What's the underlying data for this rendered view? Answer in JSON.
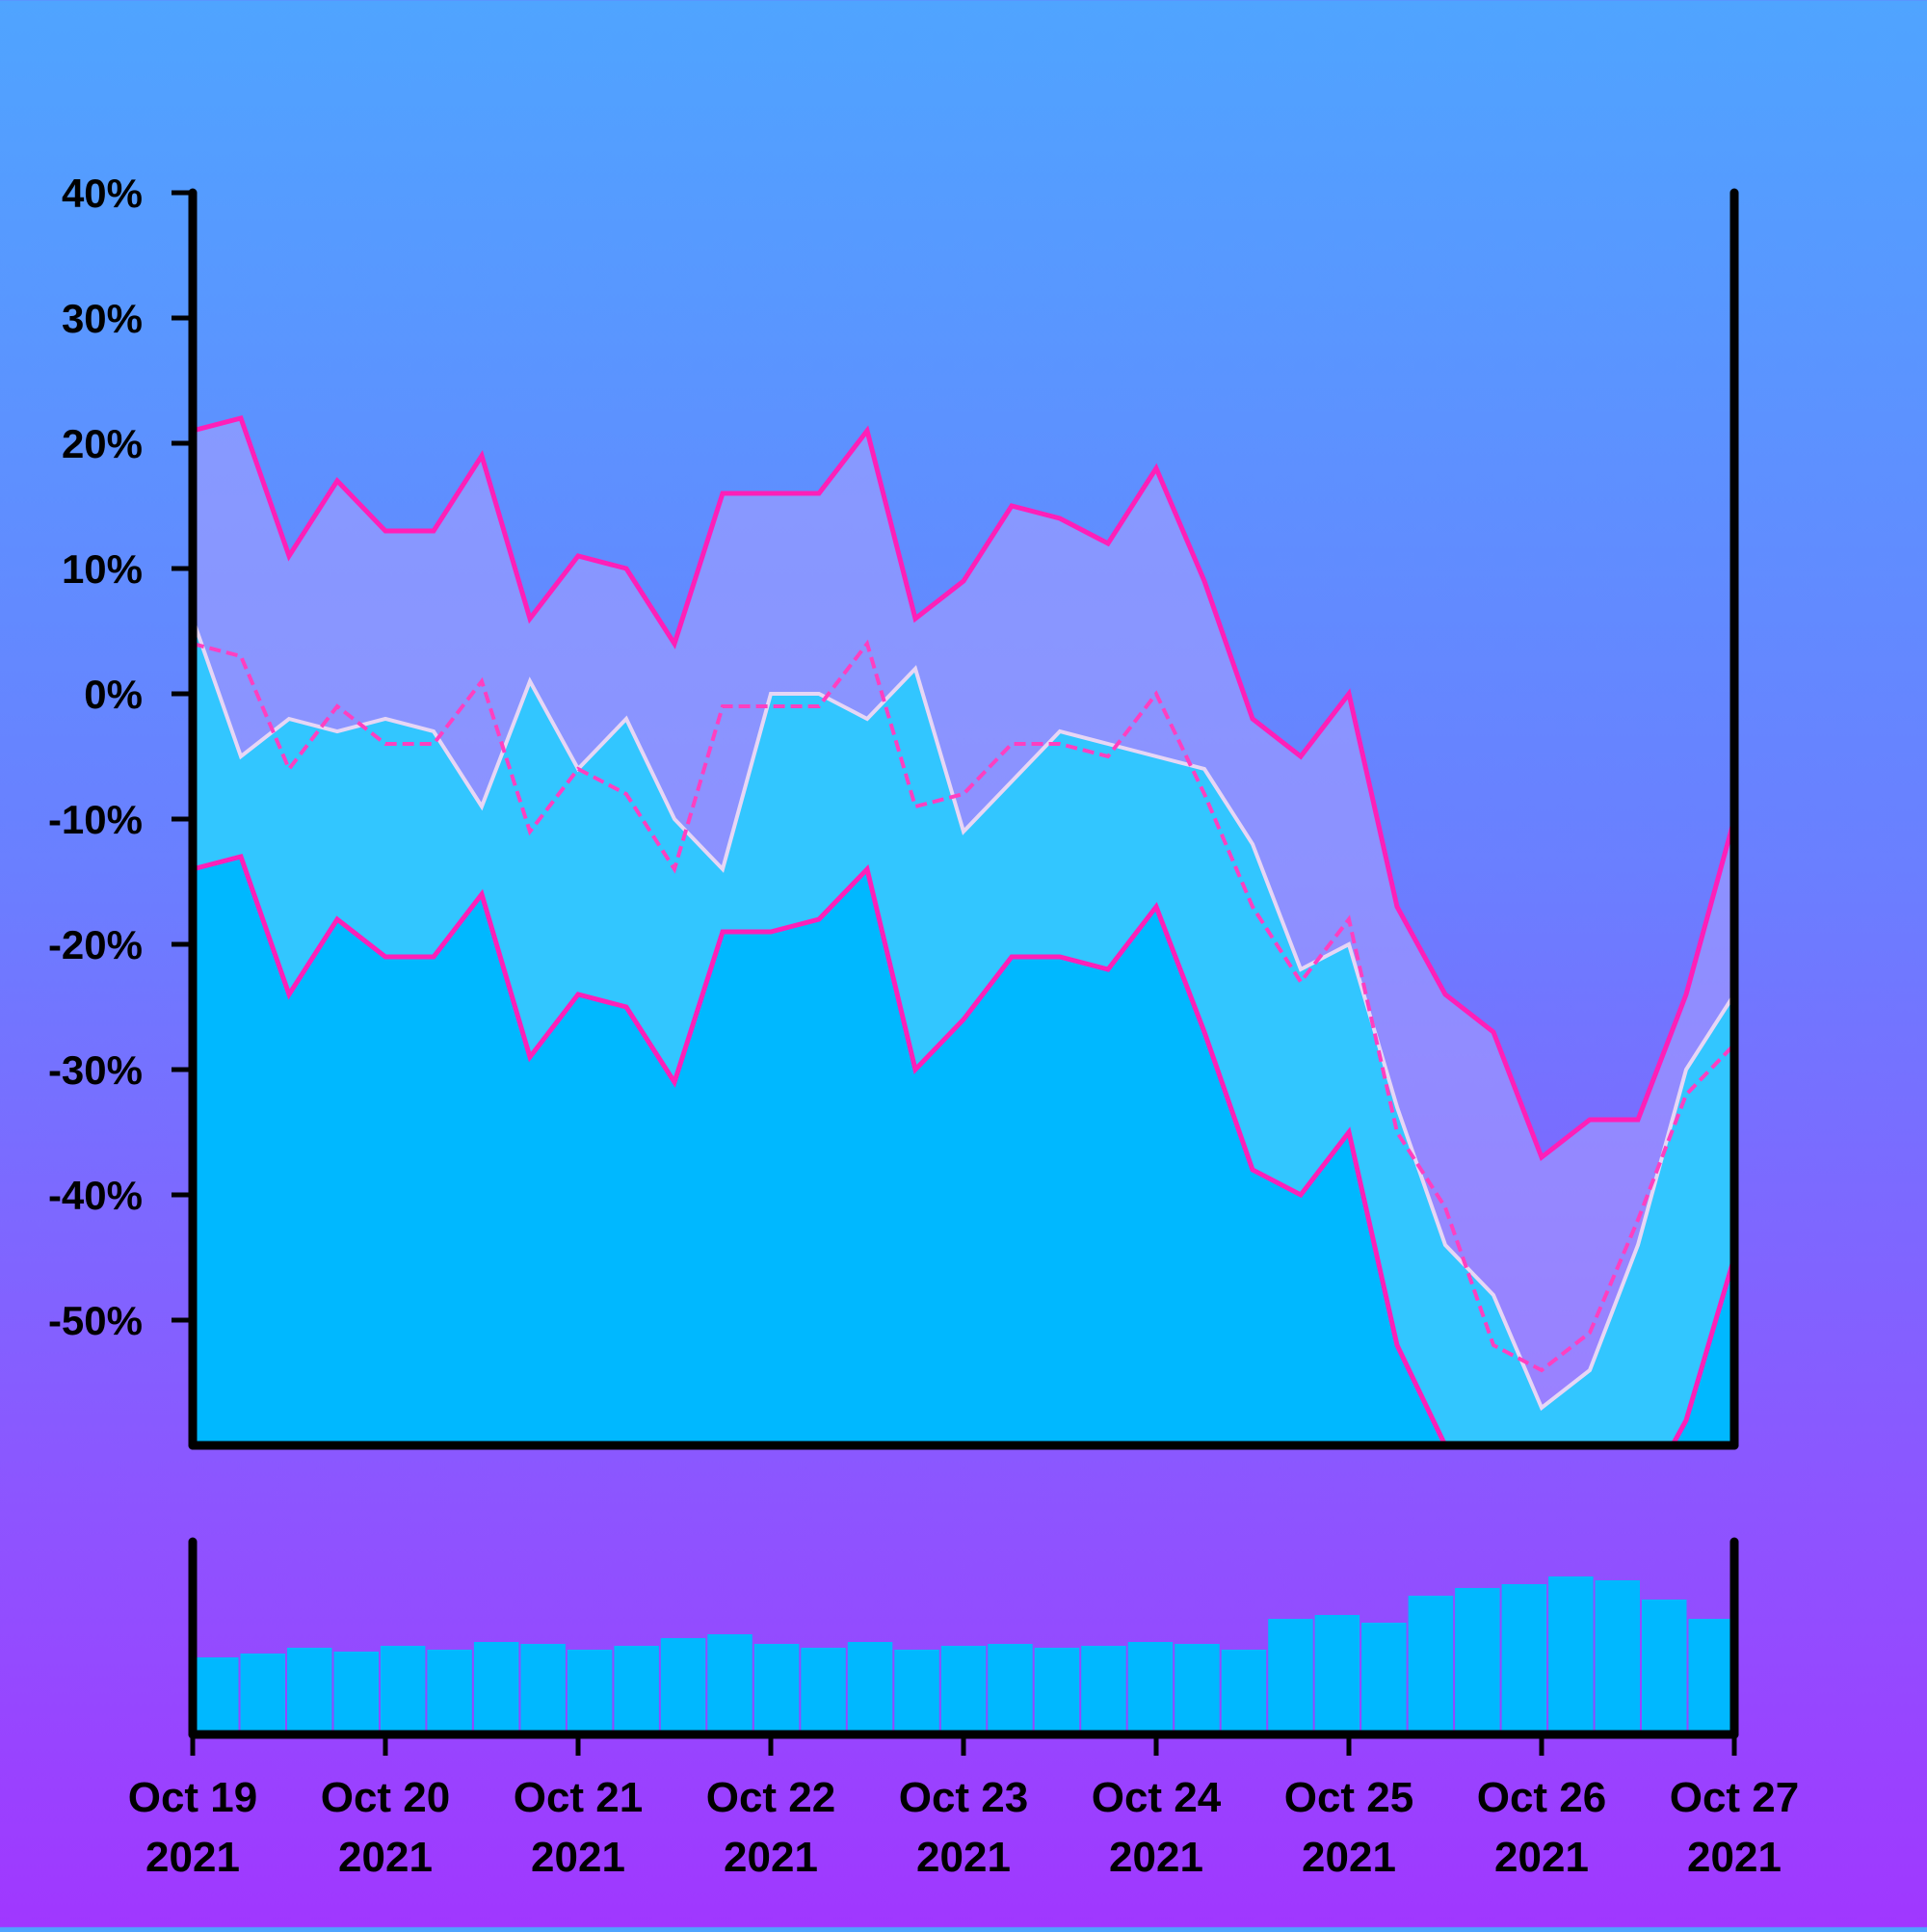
{
  "chart_data": {
    "type": "line",
    "title": "",
    "xlabel": "",
    "ylabel": "",
    "ylim": [
      -60,
      40
    ],
    "y_ticks": [
      40,
      30,
      20,
      10,
      0,
      -10,
      -20,
      -30,
      -40,
      -50
    ],
    "y_tick_labels": [
      "40%",
      "30%",
      "20%",
      "10%",
      "0%",
      "-10%",
      "-20%",
      "-30%",
      "-40%",
      "-50%"
    ],
    "x_range": [
      "2021-10-19",
      "2021-10-27"
    ],
    "x_ticks": [
      {
        "month_day": "Oct 19",
        "year": "2021"
      },
      {
        "month_day": "Oct 20",
        "year": "2021"
      },
      {
        "month_day": "Oct 21",
        "year": "2021"
      },
      {
        "month_day": "Oct 22",
        "year": "2021"
      },
      {
        "month_day": "Oct 23",
        "year": "2021"
      },
      {
        "month_day": "Oct 24",
        "year": "2021"
      },
      {
        "month_day": "Oct 25",
        "year": "2021"
      },
      {
        "month_day": "Oct 26",
        "year": "2021"
      },
      {
        "month_day": "Oct 27",
        "year": "2021"
      }
    ],
    "x": [
      "2021-10-19 00:00",
      "2021-10-19 06:00",
      "2021-10-19 12:00",
      "2021-10-19 18:00",
      "2021-10-20 00:00",
      "2021-10-20 06:00",
      "2021-10-20 12:00",
      "2021-10-20 18:00",
      "2021-10-21 00:00",
      "2021-10-21 06:00",
      "2021-10-21 12:00",
      "2021-10-21 18:00",
      "2021-10-22 00:00",
      "2021-10-22 06:00",
      "2021-10-22 12:00",
      "2021-10-22 18:00",
      "2021-10-23 00:00",
      "2021-10-23 06:00",
      "2021-10-23 12:00",
      "2021-10-23 18:00",
      "2021-10-24 00:00",
      "2021-10-24 06:00",
      "2021-10-24 12:00",
      "2021-10-24 18:00",
      "2021-10-25 00:00",
      "2021-10-25 06:00",
      "2021-10-25 12:00",
      "2021-10-25 18:00",
      "2021-10-26 00:00",
      "2021-10-26 06:00",
      "2021-10-26 12:00",
      "2021-10-26 18:00",
      "2021-10-27 00:00"
    ],
    "series": [
      {
        "name": "",
        "role": "value",
        "style": "light-line",
        "values": [
          6,
          -5,
          -2,
          -3,
          -2,
          -3,
          -9,
          1,
          -6,
          -2,
          -10,
          -14,
          0,
          0,
          -2,
          2,
          -11,
          -7,
          -3,
          -4,
          -5,
          -6,
          -12,
          -22,
          -20,
          -33,
          -44,
          -48,
          -57,
          -54,
          -44,
          -30,
          -24
        ]
      },
      {
        "name": "",
        "role": "moving-average",
        "style": "dashed",
        "values": [
          4,
          3,
          -6,
          -1,
          -4,
          -4,
          1,
          -11,
          -6,
          -8,
          -14,
          -1,
          -1,
          -1,
          4,
          -9,
          -8,
          -4,
          -4,
          -5,
          0,
          -8,
          -17,
          -23,
          -18,
          -35,
          -41,
          -52,
          -54,
          -51,
          -42,
          -32,
          -28
        ]
      },
      {
        "name": "",
        "role": "upper-band",
        "style": "solid",
        "values": [
          21,
          22,
          11,
          17,
          13,
          13,
          19,
          6,
          11,
          10,
          4,
          16,
          16,
          16,
          21,
          6,
          9,
          15,
          14,
          12,
          18,
          9,
          -2,
          -5,
          0,
          -17,
          -24,
          -27,
          -37,
          -34,
          -34,
          -24,
          -10
        ]
      },
      {
        "name": "",
        "role": "lower-band",
        "style": "solid",
        "values": [
          -14,
          -13,
          -24,
          -18,
          -21,
          -21,
          -16,
          -29,
          -24,
          -25,
          -31,
          -19,
          -19,
          -18,
          -14,
          -30,
          -26,
          -21,
          -21,
          -22,
          -17,
          -27,
          -38,
          -40,
          -35,
          -52,
          -60,
          -62,
          -70,
          -67,
          -65,
          -58,
          -45
        ]
      }
    ],
    "volume": {
      "x_range": [
        "2021-10-19",
        "2021-10-27"
      ],
      "values": [
        40,
        42,
        45,
        43,
        46,
        44,
        48,
        47,
        44,
        46,
        50,
        52,
        47,
        45,
        48,
        44,
        46,
        47,
        45,
        46,
        48,
        47,
        44,
        60,
        62,
        58,
        72,
        76,
        78,
        82,
        80,
        70,
        60
      ],
      "max": 100
    },
    "grid": false,
    "legend": "none"
  }
}
